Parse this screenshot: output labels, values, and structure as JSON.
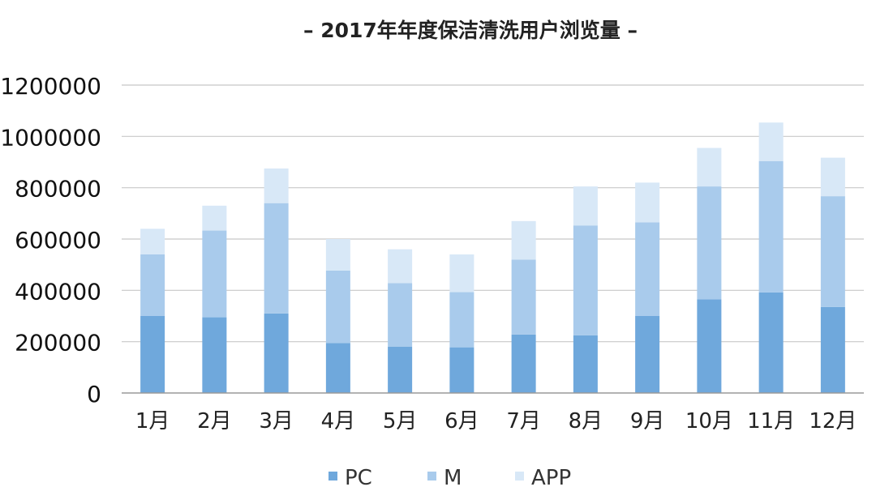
{
  "chart_data": {
    "type": "bar",
    "stacked": true,
    "title": "– 2017年年度保洁清洗用户浏览量 –",
    "xlabel": "",
    "ylabel": "",
    "categories": [
      "1月",
      "2月",
      "3月",
      "4月",
      "5月",
      "6月",
      "7月",
      "8月",
      "9月",
      "10月",
      "11月",
      "12月"
    ],
    "series": [
      {
        "name": "PC",
        "color": "#6fa8dc",
        "values": [
          300000,
          295000,
          310000,
          195000,
          180000,
          178000,
          228000,
          225000,
          300000,
          365000,
          392000,
          335000
        ]
      },
      {
        "name": "M",
        "color": "#a9cbec",
        "values": [
          240000,
          338000,
          430000,
          282000,
          248000,
          215000,
          292000,
          428000,
          365000,
          440000,
          512000,
          432000
        ]
      },
      {
        "name": "APP",
        "color": "#d8e8f7",
        "values": [
          100000,
          97000,
          135000,
          123000,
          132000,
          147000,
          150000,
          152000,
          155000,
          150000,
          150000,
          150000
        ]
      }
    ],
    "ylim": [
      0,
      1200000
    ],
    "yticks": [
      0,
      200000,
      400000,
      600000,
      800000,
      1000000,
      1200000
    ],
    "grid": true,
    "legend_position": "bottom"
  }
}
